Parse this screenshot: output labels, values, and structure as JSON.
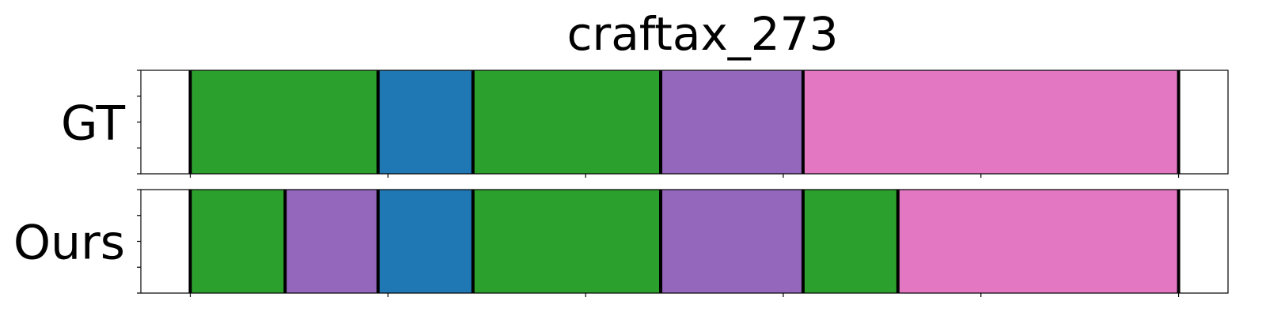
{
  "chart_data": {
    "type": "segmentation-timeline",
    "title": "craftax_273",
    "xlim": [
      -25,
      525
    ],
    "x_ticks": [
      0,
      100,
      200,
      300,
      400,
      500
    ],
    "show_x_tick_labels": false,
    "rows": [
      {
        "label": "GT",
        "segments": [
          {
            "start": 0,
            "end": 95,
            "color": "#2ca02c"
          },
          {
            "start": 95,
            "end": 143,
            "color": "#1f77b4"
          },
          {
            "start": 143,
            "end": 238,
            "color": "#2ca02c"
          },
          {
            "start": 238,
            "end": 310,
            "color": "#9467bd"
          },
          {
            "start": 310,
            "end": 500,
            "color": "#e377c2"
          }
        ]
      },
      {
        "label": "Ours",
        "segments": [
          {
            "start": 0,
            "end": 48,
            "color": "#2ca02c"
          },
          {
            "start": 48,
            "end": 95,
            "color": "#9467bd"
          },
          {
            "start": 95,
            "end": 143,
            "color": "#1f77b4"
          },
          {
            "start": 143,
            "end": 238,
            "color": "#2ca02c"
          },
          {
            "start": 238,
            "end": 310,
            "color": "#9467bd"
          },
          {
            "start": 310,
            "end": 358,
            "color": "#2ca02c"
          },
          {
            "start": 358,
            "end": 500,
            "color": "#e377c2"
          }
        ]
      }
    ]
  }
}
